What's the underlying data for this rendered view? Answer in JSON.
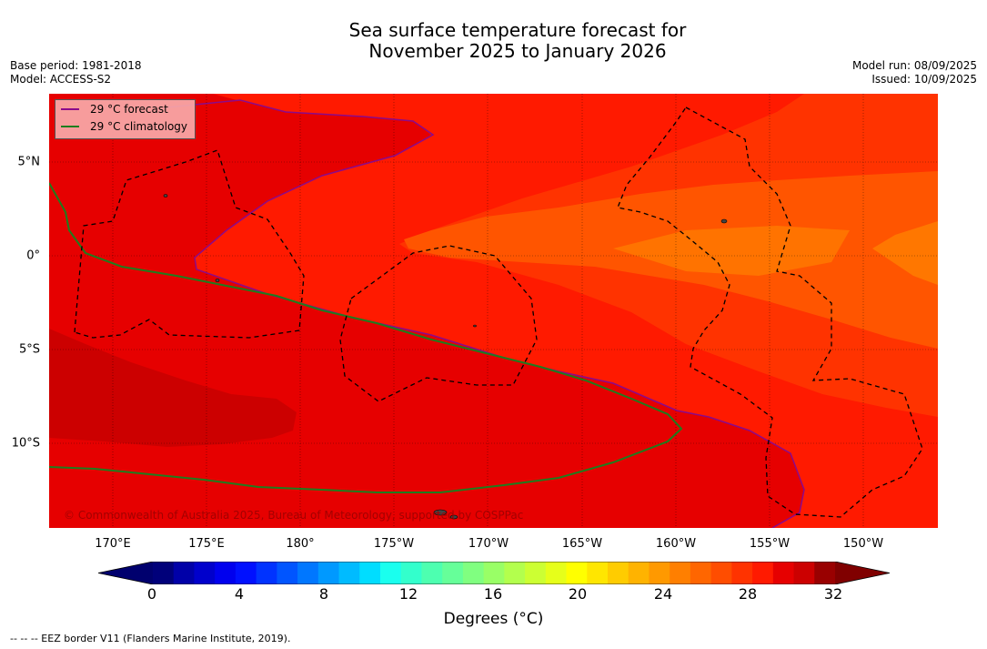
{
  "title": {
    "line1": "Sea surface temperature forecast for",
    "line2": "November 2025 to January 2026"
  },
  "meta_left": {
    "base_period": "Base period: 1981-2018",
    "model": "Model: ACCESS-S2"
  },
  "meta_right": {
    "model_run": "Model run: 08/09/2025",
    "issued": "Issued: 10/09/2025"
  },
  "map": {
    "longitude_labels": [
      "170°E",
      "175°E",
      "180°",
      "175°W",
      "170°W",
      "165°W",
      "160°W",
      "155°W",
      "150°W"
    ],
    "latitude_labels": [
      "5°N",
      "0°",
      "5°S",
      "10°S"
    ],
    "gridlines": true,
    "copyright": "© Commonwealth of Australia 2025, Bureau of Meteorology, supported by COSPPac",
    "legend": {
      "position": "top-left",
      "items": [
        {
          "label": "29 °C  forecast",
          "color": "#8b0a8b"
        },
        {
          "label": "29 °C  climatology",
          "color": "#1e7d1e"
        }
      ]
    }
  },
  "colorbar": {
    "tick_labels": [
      "0",
      "4",
      "8",
      "12",
      "16",
      "20",
      "24",
      "28",
      "32"
    ],
    "label": "Degrees (°C)",
    "colors": [
      "#00007a",
      "#0000a8",
      "#0000cc",
      "#0000ee",
      "#0010ff",
      "#0033ff",
      "#0055ff",
      "#0077ff",
      "#0099ff",
      "#00bbff",
      "#00ddff",
      "#1affee",
      "#33ffcc",
      "#4dffb0",
      "#66ff99",
      "#80ff80",
      "#99ff66",
      "#b3ff4d",
      "#ccff33",
      "#e6ff1a",
      "#ffff00",
      "#ffe600",
      "#ffcc00",
      "#ffb300",
      "#ff9900",
      "#ff7f00",
      "#ff6600",
      "#ff4d00",
      "#ff3300",
      "#ff1a00",
      "#e60000",
      "#cc0000",
      "#990000"
    ],
    "under_color": "#00006e",
    "over_color": "#800000"
  },
  "map_colors": {
    "c25_26": "#ff7700",
    "c26_27": "#ff5500",
    "c27_28": "#ff3300",
    "c28_29": "#ff1a00",
    "c29_30": "#e60000",
    "c30_31": "#cc0000"
  },
  "footnote": "--  --  -- EEZ border V11 (Flanders Marine Institute, 2019)."
}
